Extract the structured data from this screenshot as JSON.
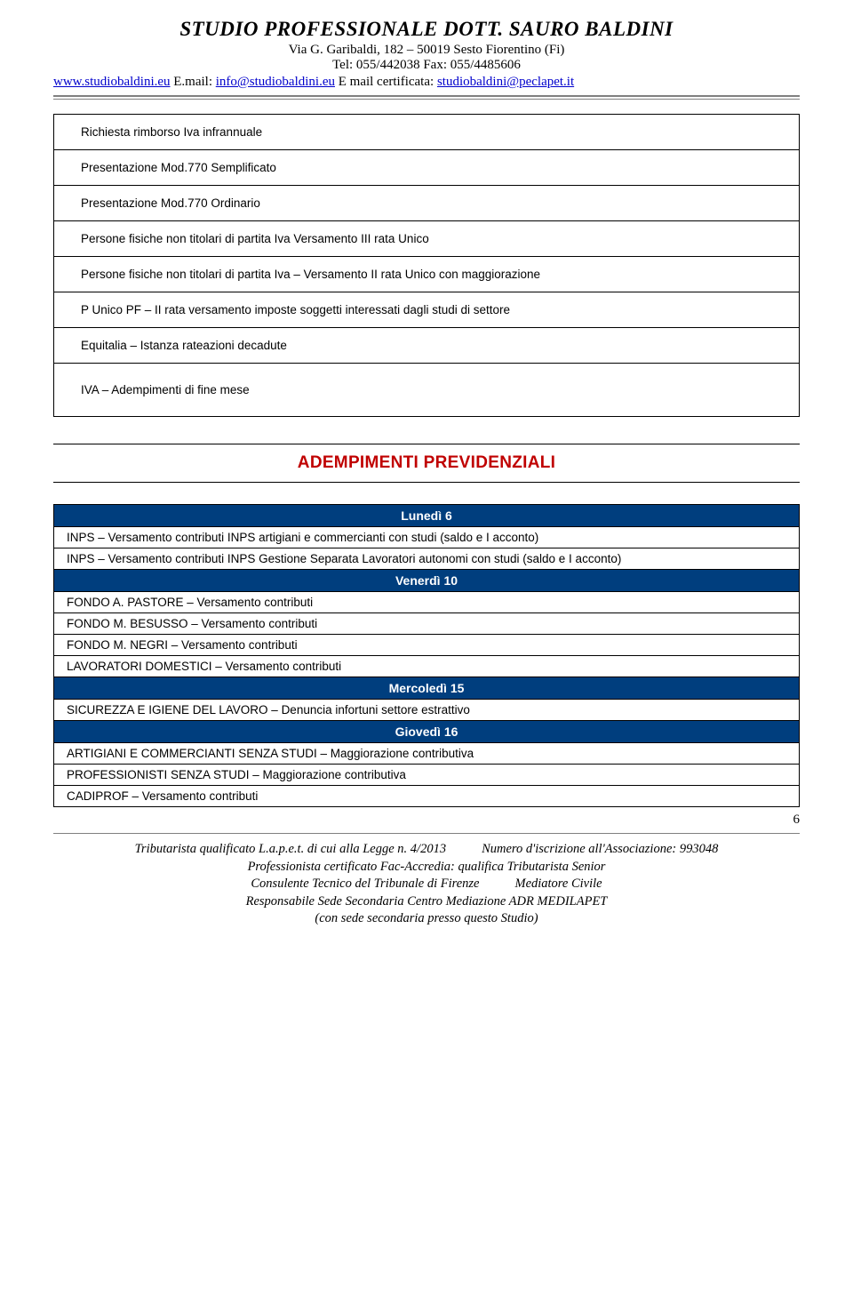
{
  "header": {
    "title": "STUDIO PROFESSIONALE DOTT. SAURO BALDINI",
    "address": "Via G. Garibaldi, 182 – 50019 Sesto Fiorentino (Fi)",
    "tel": "Tel: 055/442038 Fax: 055/4485606",
    "web_link": "www.studiobaldini.eu",
    "email_prefix": "  E.mail: ",
    "email_link": "info@studiobaldini.eu",
    "pec_prefix": "   E mail certificata: ",
    "pec_link": "studiobaldini@peclapet.it"
  },
  "top_rows": [
    "Richiesta rimborso Iva infrannuale",
    "Presentazione Mod.770 Semplificato",
    "Presentazione Mod.770 Ordinario",
    "Persone fisiche non titolari di partita Iva Versamento III rata Unico",
    "Persone fisiche non titolari di partita Iva – Versamento II rata Unico con maggiorazione",
    "P Unico PF – II rata versamento imposte soggetti interessati dagli studi di settore",
    "Equitalia – Istanza rateazioni decadute",
    "IVA – Adempimenti di fine mese"
  ],
  "section_title": "ADEMPIMENTI PREVIDENZIALI",
  "schedule": [
    {
      "type": "day",
      "label": "Lunedì 6"
    },
    {
      "type": "item",
      "label": "INPS – Versamento contributi INPS artigiani e commercianti con studi (saldo e I acconto)"
    },
    {
      "type": "item",
      "label": "INPS – Versamento contributi INPS Gestione Separata Lavoratori autonomi con studi (saldo e I acconto)"
    },
    {
      "type": "day",
      "label": "Venerdì 10"
    },
    {
      "type": "item",
      "label": "FONDO A. PASTORE – Versamento contributi"
    },
    {
      "type": "item",
      "label": "FONDO M. BESUSSO – Versamento contributi"
    },
    {
      "type": "item",
      "label": "FONDO M. NEGRI – Versamento contributi"
    },
    {
      "type": "item",
      "label": "LAVORATORI DOMESTICI – Versamento contributi"
    },
    {
      "type": "day",
      "label": "Mercoledì 15"
    },
    {
      "type": "item",
      "label": "SICUREZZA E IGIENE DEL LAVORO – Denuncia infortuni settore estrattivo"
    },
    {
      "type": "day",
      "label": "Giovedì 16"
    },
    {
      "type": "item",
      "label": "ARTIGIANI E COMMERCIANTI SENZA STUDI – Maggiorazione contributiva"
    },
    {
      "type": "item",
      "label": "PROFESSIONISTI SENZA STUDI – Maggiorazione contributiva"
    },
    {
      "type": "item",
      "label": "CADIPROF – Versamento contributi"
    }
  ],
  "page_number": "6",
  "footer": {
    "line1_left": "Tributarista qualificato L.a.p.e.t. di cui alla Legge n. 4/2013",
    "line1_right": "Numero d'iscrizione all'Associazione: 993048",
    "line2": "Professionista certificato Fac-Accredia: qualifica Tributarista Senior",
    "line3_left": "Consulente Tecnico del Tribunale di Firenze",
    "line3_right": "Mediatore Civile",
    "line4": "Responsabile Sede Secondaria Centro Mediazione ADR MEDILAPET",
    "line5": "(con sede secondaria presso questo Studio)"
  },
  "colors": {
    "day_bg": "#003e7e",
    "section_title": "#c00000",
    "link": "#0000cc"
  }
}
